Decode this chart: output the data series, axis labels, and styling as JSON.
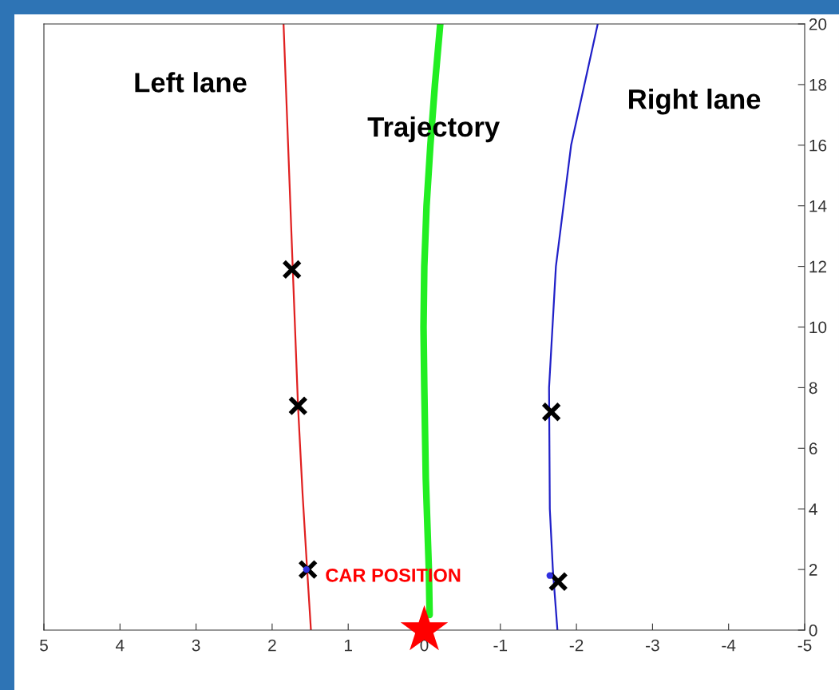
{
  "chart_data": {
    "type": "line",
    "xlim": [
      5,
      -5
    ],
    "xticks": [
      5,
      4,
      3,
      2,
      1,
      0,
      {
        "value": -1,
        "label": "-1"
      },
      {
        "value": -2,
        "label": "-2"
      },
      {
        "value": -3,
        "label": "-3"
      },
      {
        "value": -4,
        "label": "-4"
      },
      {
        "value": -5,
        "label": "-5"
      }
    ],
    "ylim": [
      0,
      20
    ],
    "yticks": [
      0,
      2,
      4,
      6,
      8,
      10,
      12,
      14,
      16,
      18,
      20
    ],
    "grid": false,
    "legend": false,
    "series": [
      {
        "name": "Left lane",
        "color": "#e02020",
        "x": [
          1.49,
          1.54,
          1.6,
          1.66,
          1.73,
          1.79,
          1.85
        ],
        "values": [
          0,
          2,
          4.5,
          7.4,
          12,
          16,
          20
        ]
      },
      {
        "name": "Trajectory",
        "color": "#22ee22",
        "x": [
          -0.07,
          -0.06,
          -0.02,
          0.0,
          0.01,
          0.0,
          -0.03,
          -0.08,
          -0.14,
          -0.21
        ],
        "values": [
          0.5,
          2,
          5,
          8,
          10,
          12,
          14,
          16,
          18,
          20
        ]
      },
      {
        "name": "Right lane",
        "color": "#2020c8",
        "x": [
          -1.75,
          -1.69,
          -1.65,
          -1.64,
          -1.73,
          -1.93,
          -2.28
        ],
        "values": [
          0,
          2,
          4,
          8,
          12,
          16,
          20
        ]
      },
      {
        "type": "scatter",
        "marker": "circle",
        "color": "#3030e0",
        "x": [
          1.55,
          -1.65
        ],
        "values": [
          2.0,
          1.8
        ]
      },
      {
        "type": "scatter",
        "marker": "cross",
        "color": "#000000",
        "x": [
          1.74,
          1.66,
          1.53,
          -1.67,
          -1.76
        ],
        "values": [
          11.9,
          7.4,
          2.0,
          7.2,
          1.6
        ]
      },
      {
        "name": "CAR POSITION",
        "type": "scatter",
        "marker": "star",
        "color": "#ff0000",
        "x": [
          0
        ],
        "values": [
          0
        ]
      }
    ]
  }
}
